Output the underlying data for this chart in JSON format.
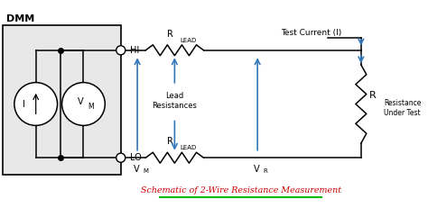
{
  "title": "Schematic of 2-Wire Resistance Measurement",
  "title_color": "#cc0000",
  "underline_color": "#00bb00",
  "bg_color": "#e8e8e8",
  "wire_color": "#000000",
  "arrow_color": "#3377bb",
  "dmm_label": "DMM",
  "hi_label": "HI",
  "lo_label": "LO",
  "vm_label": "V",
  "vm_sub": "M",
  "i_label": "I",
  "r_label": "R",
  "rlead_label": "R",
  "rlead_sub": "LEAD",
  "vm_arrow_label": "V",
  "vm_arrow_sub": "M",
  "vr_label": "V",
  "vr_sub": "R",
  "lead_res_label": "Lead\nResistances",
  "test_current_label": "Test Current (I)",
  "resistance_label": "Resistance\nUnder Test",
  "fig_width": 4.74,
  "fig_height": 2.31,
  "xlim": [
    0,
    10
  ],
  "ylim": [
    0,
    5
  ]
}
